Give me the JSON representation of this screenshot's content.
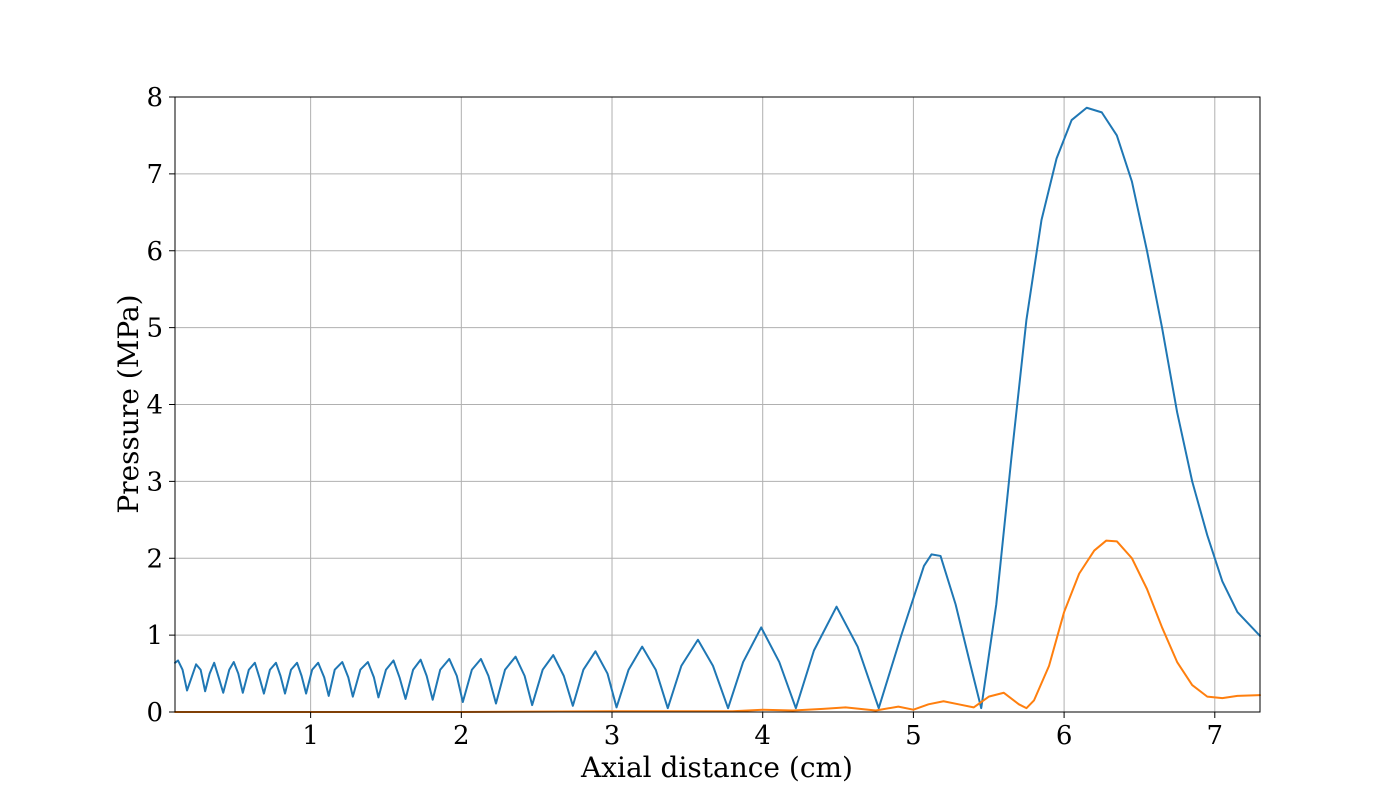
{
  "chart_data": {
    "type": "line",
    "xlabel": "Axial distance (cm)",
    "ylabel": "Pressure (MPa)",
    "xlim": [
      0.1,
      7.3
    ],
    "ylim": [
      0,
      8
    ],
    "xticks": [
      1,
      2,
      3,
      4,
      5,
      6,
      7
    ],
    "yticks": [
      0,
      1,
      2,
      3,
      4,
      5,
      6,
      7,
      8
    ],
    "grid": true,
    "colors": [
      "#1f77b4",
      "#ff7f0e"
    ],
    "series": [
      {
        "color": "#1f77b4",
        "points": [
          [
            0.1,
            0.64
          ],
          [
            0.12,
            0.67
          ],
          [
            0.15,
            0.55
          ],
          [
            0.18,
            0.28
          ],
          [
            0.21,
            0.45
          ],
          [
            0.24,
            0.62
          ],
          [
            0.27,
            0.55
          ],
          [
            0.3,
            0.27
          ],
          [
            0.33,
            0.5
          ],
          [
            0.36,
            0.64
          ],
          [
            0.39,
            0.45
          ],
          [
            0.42,
            0.25
          ],
          [
            0.46,
            0.55
          ],
          [
            0.49,
            0.65
          ],
          [
            0.52,
            0.5
          ],
          [
            0.55,
            0.25
          ],
          [
            0.59,
            0.55
          ],
          [
            0.63,
            0.64
          ],
          [
            0.66,
            0.45
          ],
          [
            0.69,
            0.24
          ],
          [
            0.73,
            0.55
          ],
          [
            0.77,
            0.64
          ],
          [
            0.8,
            0.47
          ],
          [
            0.83,
            0.24
          ],
          [
            0.87,
            0.55
          ],
          [
            0.91,
            0.64
          ],
          [
            0.94,
            0.47
          ],
          [
            0.97,
            0.24
          ],
          [
            1.01,
            0.55
          ],
          [
            1.05,
            0.64
          ],
          [
            1.09,
            0.45
          ],
          [
            1.12,
            0.21
          ],
          [
            1.16,
            0.55
          ],
          [
            1.21,
            0.65
          ],
          [
            1.25,
            0.45
          ],
          [
            1.28,
            0.2
          ],
          [
            1.33,
            0.55
          ],
          [
            1.38,
            0.65
          ],
          [
            1.42,
            0.45
          ],
          [
            1.45,
            0.19
          ],
          [
            1.5,
            0.55
          ],
          [
            1.55,
            0.67
          ],
          [
            1.59,
            0.45
          ],
          [
            1.63,
            0.17
          ],
          [
            1.68,
            0.55
          ],
          [
            1.73,
            0.68
          ],
          [
            1.77,
            0.47
          ],
          [
            1.81,
            0.16
          ],
          [
            1.86,
            0.55
          ],
          [
            1.92,
            0.69
          ],
          [
            1.97,
            0.47
          ],
          [
            2.01,
            0.13
          ],
          [
            2.07,
            0.55
          ],
          [
            2.13,
            0.69
          ],
          [
            2.18,
            0.47
          ],
          [
            2.23,
            0.11
          ],
          [
            2.29,
            0.55
          ],
          [
            2.36,
            0.72
          ],
          [
            2.42,
            0.47
          ],
          [
            2.47,
            0.09
          ],
          [
            2.54,
            0.55
          ],
          [
            2.61,
            0.74
          ],
          [
            2.68,
            0.47
          ],
          [
            2.74,
            0.08
          ],
          [
            2.81,
            0.55
          ],
          [
            2.89,
            0.79
          ],
          [
            2.97,
            0.5
          ],
          [
            3.03,
            0.06
          ],
          [
            3.11,
            0.55
          ],
          [
            3.2,
            0.85
          ],
          [
            3.29,
            0.55
          ],
          [
            3.37,
            0.05
          ],
          [
            3.46,
            0.6
          ],
          [
            3.57,
            0.94
          ],
          [
            3.67,
            0.6
          ],
          [
            3.77,
            0.05
          ],
          [
            3.87,
            0.65
          ],
          [
            3.99,
            1.1
          ],
          [
            4.11,
            0.65
          ],
          [
            4.22,
            0.05
          ],
          [
            4.34,
            0.8
          ],
          [
            4.49,
            1.37
          ],
          [
            4.63,
            0.85
          ],
          [
            4.77,
            0.05
          ],
          [
            4.92,
            1.0
          ],
          [
            5.07,
            1.9
          ],
          [
            5.12,
            2.05
          ],
          [
            5.18,
            2.03
          ],
          [
            5.28,
            1.4
          ],
          [
            5.38,
            0.6
          ],
          [
            5.45,
            0.05
          ],
          [
            5.55,
            1.4
          ],
          [
            5.65,
            3.3
          ],
          [
            5.75,
            5.1
          ],
          [
            5.85,
            6.4
          ],
          [
            5.95,
            7.2
          ],
          [
            6.05,
            7.7
          ],
          [
            6.15,
            7.86
          ],
          [
            6.25,
            7.8
          ],
          [
            6.35,
            7.5
          ],
          [
            6.45,
            6.9
          ],
          [
            6.55,
            6.0
          ],
          [
            6.65,
            5.0
          ],
          [
            6.75,
            3.9
          ],
          [
            6.85,
            3.0
          ],
          [
            6.95,
            2.3
          ],
          [
            7.05,
            1.7
          ],
          [
            7.15,
            1.3
          ],
          [
            7.3,
            0.99
          ]
        ]
      },
      {
        "color": "#ff7f0e",
        "points": [
          [
            0.1,
            0.0
          ],
          [
            2.0,
            0.0
          ],
          [
            3.0,
            0.01
          ],
          [
            3.5,
            0.01
          ],
          [
            3.8,
            0.01
          ],
          [
            4.0,
            0.03
          ],
          [
            4.2,
            0.02
          ],
          [
            4.4,
            0.04
          ],
          [
            4.55,
            0.06
          ],
          [
            4.75,
            0.02
          ],
          [
            4.9,
            0.07
          ],
          [
            5.0,
            0.03
          ],
          [
            5.1,
            0.1
          ],
          [
            5.2,
            0.14
          ],
          [
            5.3,
            0.1
          ],
          [
            5.4,
            0.06
          ],
          [
            5.5,
            0.2
          ],
          [
            5.6,
            0.25
          ],
          [
            5.7,
            0.1
          ],
          [
            5.75,
            0.05
          ],
          [
            5.8,
            0.15
          ],
          [
            5.9,
            0.6
          ],
          [
            6.0,
            1.3
          ],
          [
            6.1,
            1.8
          ],
          [
            6.2,
            2.1
          ],
          [
            6.28,
            2.23
          ],
          [
            6.35,
            2.22
          ],
          [
            6.45,
            2.0
          ],
          [
            6.55,
            1.6
          ],
          [
            6.65,
            1.1
          ],
          [
            6.75,
            0.65
          ],
          [
            6.85,
            0.35
          ],
          [
            6.95,
            0.2
          ],
          [
            7.05,
            0.18
          ],
          [
            7.15,
            0.21
          ],
          [
            7.3,
            0.22
          ]
        ]
      }
    ]
  }
}
